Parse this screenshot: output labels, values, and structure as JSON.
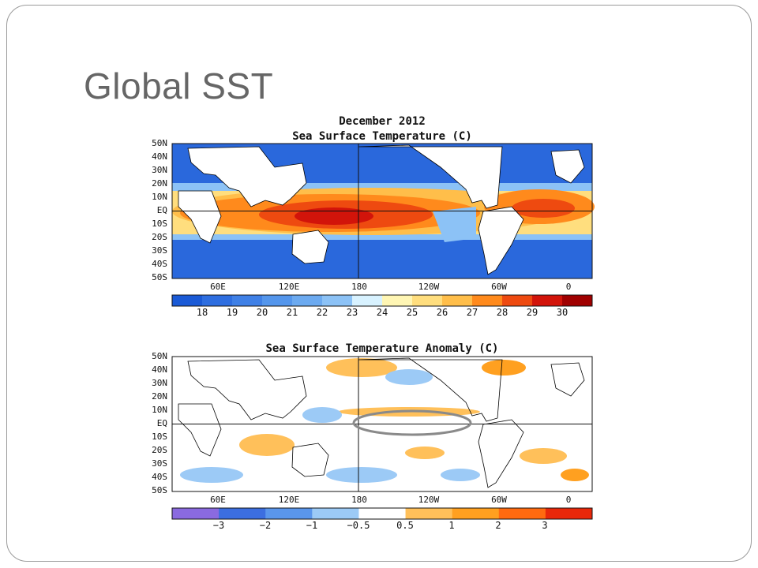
{
  "slide": {
    "title": "Global SST"
  },
  "chart_data": [
    {
      "type": "heatmap",
      "title": "December 2012",
      "subtitle": "Sea Surface Temperature (C)",
      "y_ticks": [
        "50N",
        "40N",
        "30N",
        "20N",
        "10N",
        "EQ",
        "10S",
        "20S",
        "30S",
        "40S",
        "50S"
      ],
      "x_ticks": [
        "60E",
        "120E",
        "180",
        "120W",
        "60W",
        "0"
      ],
      "reference_lines": [
        "EQ",
        "180"
      ],
      "colorbar": {
        "labels": [
          "18",
          "19",
          "20",
          "21",
          "22",
          "23",
          "24",
          "25",
          "26",
          "27",
          "28",
          "29",
          "30"
        ],
        "colors": [
          "#1a5ad6",
          "#2e6ee0",
          "#3f80e6",
          "#5496ec",
          "#6caaf0",
          "#8cc2f6",
          "#d8f2ff",
          "#fff6b4",
          "#ffde7e",
          "#ffbe4a",
          "#ff8a1c",
          "#ee4a10",
          "#d2140a",
          "#a00000"
        ]
      }
    },
    {
      "type": "heatmap",
      "title": "Sea Surface Temperature Anomaly (C)",
      "y_ticks": [
        "50N",
        "40N",
        "30N",
        "20N",
        "10N",
        "EQ",
        "10S",
        "20S",
        "30S",
        "40S",
        "50S"
      ],
      "x_ticks": [
        "60E",
        "120E",
        "180",
        "120W",
        "60W",
        "0"
      ],
      "reference_lines": [
        "EQ",
        "180"
      ],
      "annotation": "gray ellipse over the equatorial eastern Pacific",
      "colorbar": {
        "labels": [
          "−3",
          "−2",
          "−1",
          "−0.5",
          "0.5",
          "1",
          "2",
          "3"
        ],
        "colors": [
          "#8a6ae0",
          "#3c6ee0",
          "#5a96ec",
          "#9ccaf6",
          "#ffffff",
          "#ffc05a",
          "#ffa020",
          "#ff6a10",
          "#e8280a"
        ]
      }
    }
  ]
}
